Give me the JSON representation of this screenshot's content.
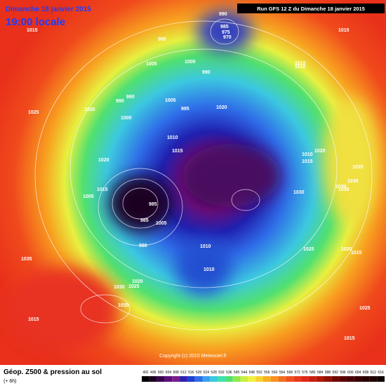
{
  "header": {
    "date": "Dimanche 18 janvier 2015",
    "time": "19:00 locale",
    "run": "Run GFS 12 Z du Dimanche 18 janvier 2015"
  },
  "copyright": "Copyright (c) 2015 Meteociel.fr",
  "footer": {
    "title": "Géop. Z500 & pression au sol",
    "step": "(+ 6h)"
  },
  "legend": {
    "scale": [
      "492",
      "496",
      "500",
      "504",
      "508",
      "512",
      "516",
      "520",
      "524",
      "528",
      "532",
      "536",
      "540",
      "544",
      "548",
      "552",
      "556",
      "560",
      "564",
      "568",
      "572",
      "576",
      "580",
      "584",
      "588",
      "592",
      "596",
      "600",
      "604",
      "608",
      "612",
      "616"
    ]
  },
  "isobars": [
    "1015",
    "995",
    "990",
    "985",
    "975",
    "970",
    "1005",
    "1000",
    "990",
    "1015",
    "1010",
    "995",
    "990",
    "1005",
    "995",
    "1020",
    "1025",
    "1000",
    "1020",
    "1010",
    "1015",
    "1015",
    "1020",
    "1010",
    "1015",
    "1020",
    "1035",
    "1030",
    "1030",
    "1005",
    "985",
    "985",
    "980",
    "1005",
    "1010",
    "1010",
    "1035",
    "1030",
    "1025",
    "1020",
    "1035",
    "1015",
    "1025",
    "1020",
    "1015",
    "1025",
    "1015",
    "1030",
    "1035",
    "1015"
  ]
}
